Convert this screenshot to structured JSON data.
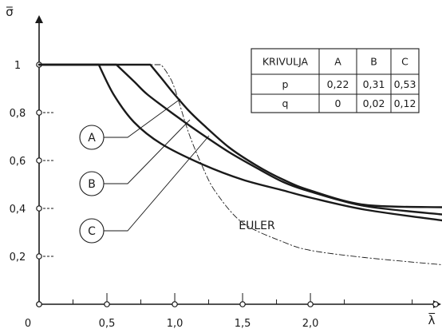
{
  "chart_data": {
    "type": "line",
    "xlabel": "λ̅",
    "ylabel": "σ̅",
    "xlim": [
      0,
      2.97
    ],
    "ylim": [
      0,
      1.2
    ],
    "x_ticks": [
      {
        "value": 0,
        "label": "0"
      },
      {
        "value": 0.5,
        "label": "0,5"
      },
      {
        "value": 1.0,
        "label": "1,0"
      },
      {
        "value": 1.5,
        "label": "1,5"
      },
      {
        "value": 2.0,
        "label": "2,0"
      }
    ],
    "y_ticks": [
      {
        "value": 0.2,
        "label": "0,2"
      },
      {
        "value": 0.4,
        "label": "0,4"
      },
      {
        "value": 0.6,
        "label": "0,6"
      },
      {
        "value": 0.8,
        "label": "0,8"
      },
      {
        "value": 1.0,
        "label": "1"
      }
    ],
    "series": [
      {
        "name": "A",
        "style": "solid",
        "x": [
          0,
          0.82,
          0.9,
          1.0,
          1.1,
          1.2,
          1.4,
          1.6,
          1.8,
          2.0,
          2.4,
          2.97
        ],
        "y": [
          1.0,
          1.0,
          0.945,
          0.875,
          0.81,
          0.755,
          0.655,
          0.58,
          0.52,
          0.475,
          0.415,
          0.405
        ]
      },
      {
        "name": "B",
        "style": "solid",
        "x": [
          0,
          0.57,
          0.7,
          0.8,
          1.0,
          1.2,
          1.4,
          1.6,
          1.8,
          2.0,
          2.4,
          2.97
        ],
        "y": [
          1.0,
          1.0,
          0.93,
          0.875,
          0.79,
          0.71,
          0.635,
          0.57,
          0.51,
          0.47,
          0.41,
          0.375
        ]
      },
      {
        "name": "C",
        "style": "solid",
        "x": [
          0,
          0.44,
          0.55,
          0.7,
          0.9,
          1.2,
          1.5,
          1.8,
          2.0,
          2.4,
          2.97
        ],
        "y": [
          1.0,
          1.0,
          0.875,
          0.76,
          0.67,
          0.585,
          0.52,
          0.475,
          0.445,
          0.395,
          0.35
        ]
      },
      {
        "name": "EULER",
        "style": "dash-dot",
        "x": [
          0,
          0.9,
          0.95,
          1.0,
          1.1,
          1.2,
          1.3,
          1.5,
          1.8,
          2.0,
          2.4,
          2.97
        ],
        "y": [
          1.0,
          1.0,
          0.96,
          0.9,
          0.72,
          0.58,
          0.47,
          0.34,
          0.26,
          0.225,
          0.195,
          0.165
        ]
      }
    ],
    "markers": [
      "A",
      "B",
      "C"
    ],
    "euler_label": "EULER",
    "table": {
      "header": [
        "KRIVULJA",
        "A",
        "B",
        "C"
      ],
      "rows": [
        [
          "p",
          "0,22",
          "0,31",
          "0,53"
        ],
        [
          "q",
          "0",
          "0,02",
          "0,12"
        ]
      ]
    },
    "grid": false,
    "legend": "top-right table"
  }
}
